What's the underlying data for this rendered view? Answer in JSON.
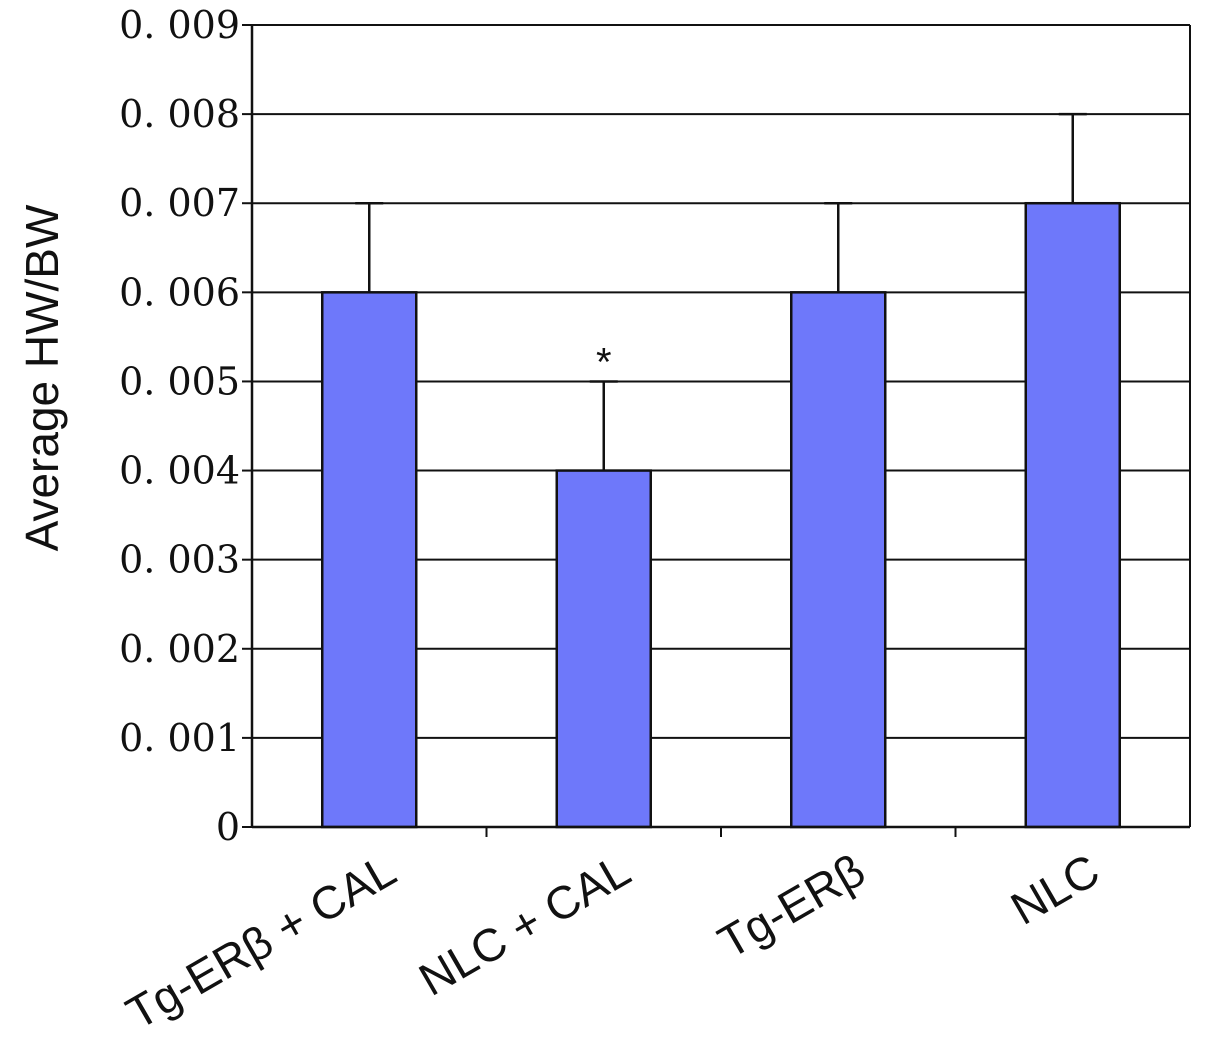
{
  "chart_data": {
    "type": "bar",
    "title": "",
    "xlabel": "",
    "ylabel": "Average HW/BW",
    "ylim": [
      0,
      0.009
    ],
    "yticks": [
      "0",
      "0. 001",
      "0. 002",
      "0. 003",
      "0. 004",
      "0. 005",
      "0. 006",
      "0. 007",
      "0. 008",
      "0. 009"
    ],
    "grid": "horizontal",
    "categories": [
      "Tg-ERβ + CAL",
      "NLC + CAL",
      "Tg-ERβ",
      "NLC"
    ],
    "values": [
      0.006,
      0.004,
      0.006,
      0.007
    ],
    "errors": [
      0.001,
      0.001,
      0.001,
      0.001
    ],
    "annotations": [
      {
        "category": "NLC + CAL",
        "text": "*"
      }
    ],
    "colors": {
      "bar": "#6E78FA",
      "bar_edge": "#111111",
      "grid": "#111111",
      "axis": "#111111"
    }
  }
}
